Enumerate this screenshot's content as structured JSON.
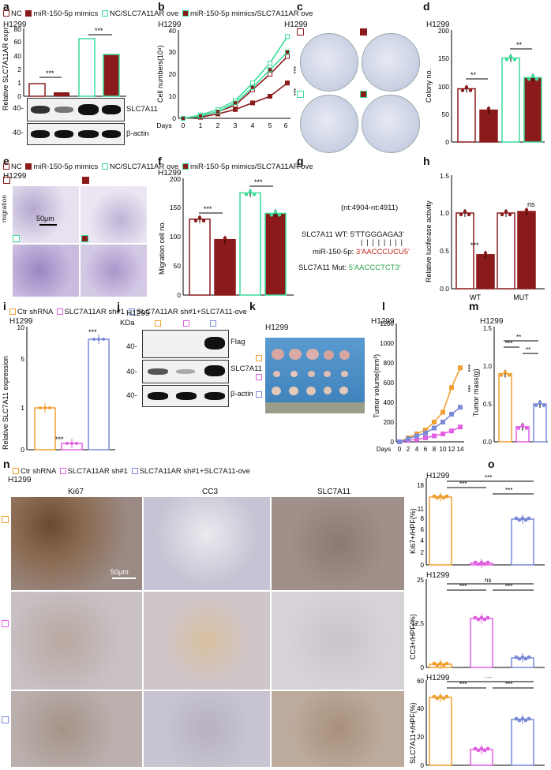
{
  "panels": [
    "a",
    "b",
    "c",
    "d",
    "e",
    "f",
    "g",
    "h",
    "i",
    "j",
    "k",
    "l",
    "m",
    "n",
    "o"
  ],
  "legend_top": [
    {
      "label": "NC",
      "color": "#8b1a1a",
      "fill": "none"
    },
    {
      "label": "miR-150-5p mimics",
      "color": "#8b1a1a",
      "fill": "#8b1a1a"
    },
    {
      "label": "NC/SLC7A11AR ove",
      "color": "#3ddc9a",
      "fill": "none"
    },
    {
      "label": "miR-150-5p mimics/SLC7A11AR ove",
      "color": "#3ddc9a",
      "fill": "#8b1a1a"
    }
  ],
  "legend_mid": [
    {
      "label": "NC",
      "color": "#8b1a1a",
      "fill": "none"
    },
    {
      "label": "miR-150-5p mimics",
      "color": "#8b1a1a",
      "fill": "#8b1a1a"
    },
    {
      "label": "NC/SLC7A11AR ove",
      "color": "#3ddc9a",
      "fill": "none"
    },
    {
      "label": "miR-150-5p mimics/SLC7A11AR ove",
      "color": "#3ddc9a",
      "fill": "#8b1a1a"
    }
  ],
  "legend_i": [
    {
      "label": "Ctr shRNA",
      "color": "#f0a030"
    },
    {
      "label": "SLC7A11AR sh#1",
      "color": "#e060e0"
    },
    {
      "label": "SLC7A11AR sh#1+SLC7A11-ove",
      "color": "#7a8ad8"
    }
  ],
  "legend_n": [
    {
      "label": "Ctr shRNA",
      "color": "#f0a030"
    },
    {
      "label": "SLC7A11AR sh#1",
      "color": "#e060e0"
    },
    {
      "label": "SLC7A11AR sh#1+SLC7A11-ove",
      "color": "#7a8ad8"
    }
  ],
  "cell_line": "H1299",
  "sig3": "***",
  "sig2": "**",
  "ns": "ns",
  "a": {
    "ylabel": "Relative SLC7A11AR expression",
    "yticks": [
      "0",
      "1",
      "2",
      "3",
      "40",
      "60",
      "80"
    ],
    "blot_labels": [
      "SLC7A11",
      "β-actin"
    ],
    "kda": [
      "40-",
      "40-"
    ]
  },
  "b": {
    "ylabel": "Cell numbers(10⁴)",
    "xlabel": "Days",
    "yticks": [
      "0",
      "10",
      "20",
      "30",
      "40"
    ],
    "xticks": [
      "0",
      "1",
      "2",
      "3",
      "4",
      "5",
      "6"
    ]
  },
  "d": {
    "ylabel": "Colony no.",
    "yticks": [
      "0",
      "50",
      "100",
      "150",
      "200"
    ]
  },
  "e": {
    "row_label": "migration",
    "scale": "50μm"
  },
  "f": {
    "ylabel": "Migration cell no.",
    "yticks": [
      "0",
      "50",
      "100",
      "150",
      "200"
    ]
  },
  "g": {
    "position": "(nt:4904-nt:4911)",
    "wt_label": "SLC7A11 WT:",
    "wt_seq": "5'TTGGGAGA3'",
    "mir_label": "miR-150-5p:",
    "mir_seq": "3'AACCCUCU5'",
    "mut_label": "SLC7A11 Mut:",
    "mut_seq": "5'AACCCTCT3'"
  },
  "h": {
    "ylabel": "Relative  luciferase activity",
    "yticks": [
      "0.0",
      "0.5",
      "1.0",
      "1.5"
    ],
    "xticks": [
      "WT",
      "MUT"
    ]
  },
  "i": {
    "ylabel": "Relative SLC7A11 expression",
    "yticks": [
      "0",
      "1",
      "5",
      "10"
    ]
  },
  "j": {
    "kda_label": "KDa",
    "blot_labels": [
      "Flag",
      "SLC7A11",
      "β-actin"
    ],
    "kda": [
      "40-",
      "40-",
      "40-"
    ]
  },
  "l": {
    "ylabel": "Tumor volume(mm³)",
    "xlabel": "Days",
    "yticks": [
      "0",
      "200",
      "400",
      "600",
      "800",
      "1000",
      "1200"
    ],
    "xticks": [
      "0",
      "2",
      "4",
      "6",
      "8",
      "10",
      "12",
      "14"
    ]
  },
  "m": {
    "ylabel": "Tumor mass(g)",
    "yticks": [
      "0.0",
      "0.5",
      "1.0",
      "1.5"
    ]
  },
  "n": {
    "columns": [
      "Ki67",
      "CC3",
      "SLC7A11"
    ],
    "scale": "50μm"
  },
  "o": {
    "ki67": {
      "ylabel": "Ki67+/HPF(%)",
      "yticks": [
        "0",
        "2",
        "4",
        "6",
        "8",
        "11",
        "18"
      ]
    },
    "cc3": {
      "ylabel": "CC3+/HPF(%)",
      "yticks": [
        "0",
        "12.5",
        "25"
      ]
    },
    "slc": {
      "ylabel": "SLC7A11+/HPF(%)",
      "yticks": [
        "0",
        "20",
        "40",
        "60"
      ]
    }
  },
  "chart_data": [
    {
      "panel": "a",
      "type": "bar",
      "categories": [
        "NC",
        "miR-150-5p mimics",
        "NC/SLC7A11AR ove",
        "miR-150-5p mimics/SLC7A11AR ove"
      ],
      "values": [
        1.0,
        0.3,
        75,
        50
      ]
    },
    {
      "panel": "b",
      "type": "line",
      "x": [
        0,
        1,
        2,
        3,
        4,
        5,
        6
      ],
      "series": [
        {
          "name": "NC",
          "values": [
            0,
            1,
            3,
            6,
            13,
            20,
            28
          ]
        },
        {
          "name": "miR-150-5p mimics",
          "values": [
            0,
            0.5,
            2,
            4,
            7,
            10,
            16
          ]
        },
        {
          "name": "NC/SLC7A11AR ove",
          "values": [
            0,
            1.5,
            4,
            8,
            16,
            25,
            37
          ]
        },
        {
          "name": "miR-150-5p mimics/SLC7A11AR ove",
          "values": [
            0,
            1,
            3,
            7,
            14,
            22,
            30
          ]
        }
      ],
      "ylim": [
        0,
        40
      ]
    },
    {
      "panel": "d",
      "type": "bar",
      "categories": [
        "NC",
        "miR-150-5p mimics",
        "NC/SLC7A11AR ove",
        "miR-150-5p mimics/SLC7A11AR ove"
      ],
      "values": [
        95,
        57,
        150,
        115
      ],
      "ylim": [
        0,
        200
      ]
    },
    {
      "panel": "f",
      "type": "bar",
      "categories": [
        "NC",
        "miR-150-5p mimics",
        "NC/SLC7A11AR ove",
        "miR-150-5p mimics/SLC7A11AR ove"
      ],
      "values": [
        130,
        95,
        175,
        140
      ],
      "ylim": [
        0,
        200
      ]
    },
    {
      "panel": "h",
      "type": "bar",
      "categories": [
        "WT",
        "WT",
        "MUT",
        "MUT"
      ],
      "values": [
        1.0,
        0.45,
        1.0,
        1.02
      ],
      "ylim": [
        0,
        1.5
      ]
    },
    {
      "panel": "i",
      "type": "bar",
      "categories": [
        "Ctr shRNA",
        "SLC7A11AR sh#1",
        "SLC7A11AR sh#1+SLC7A11-ove"
      ],
      "values": [
        1.0,
        0.2,
        8.0
      ]
    },
    {
      "panel": "l",
      "type": "line",
      "x": [
        0,
        2,
        4,
        6,
        8,
        10,
        12,
        14
      ],
      "series": [
        {
          "name": "Ctr shRNA",
          "values": [
            0,
            40,
            80,
            120,
            200,
            300,
            550,
            750
          ]
        },
        {
          "name": "SLC7A11AR sh#1",
          "values": [
            0,
            15,
            25,
            40,
            60,
            80,
            110,
            150
          ]
        },
        {
          "name": "SLC7A11AR sh#1+SLC7A11-ove",
          "values": [
            0,
            30,
            60,
            90,
            140,
            200,
            280,
            350
          ]
        }
      ],
      "ylim": [
        0,
        1200
      ]
    },
    {
      "panel": "m",
      "type": "bar",
      "categories": [
        "Ctr shRNA",
        "SLC7A11AR sh#1",
        "SLC7A11AR sh#1+SLC7A11-ove"
      ],
      "values": [
        0.9,
        0.2,
        0.5
      ],
      "ylim": [
        0,
        1.5
      ]
    },
    {
      "panel": "o-ki67",
      "type": "bar",
      "categories": [
        "Ctr shRNA",
        "SLC7A11AR sh#1",
        "SLC7A11AR sh#1+SLC7A11-ove"
      ],
      "values": [
        17.5,
        0.5,
        6.2
      ]
    },
    {
      "panel": "o-cc3",
      "type": "bar",
      "categories": [
        "Ctr shRNA",
        "SLC7A11AR sh#1",
        "SLC7A11AR sh#1+SLC7A11-ove"
      ],
      "values": [
        1,
        14,
        2.5
      ],
      "ylim": [
        0,
        25
      ]
    },
    {
      "panel": "o-slc",
      "type": "bar",
      "categories": [
        "Ctr shRNA",
        "SLC7A11AR sh#1",
        "SLC7A11AR sh#1+SLC7A11-ove"
      ],
      "values": [
        48,
        11,
        32
      ],
      "ylim": [
        0,
        60
      ]
    }
  ]
}
